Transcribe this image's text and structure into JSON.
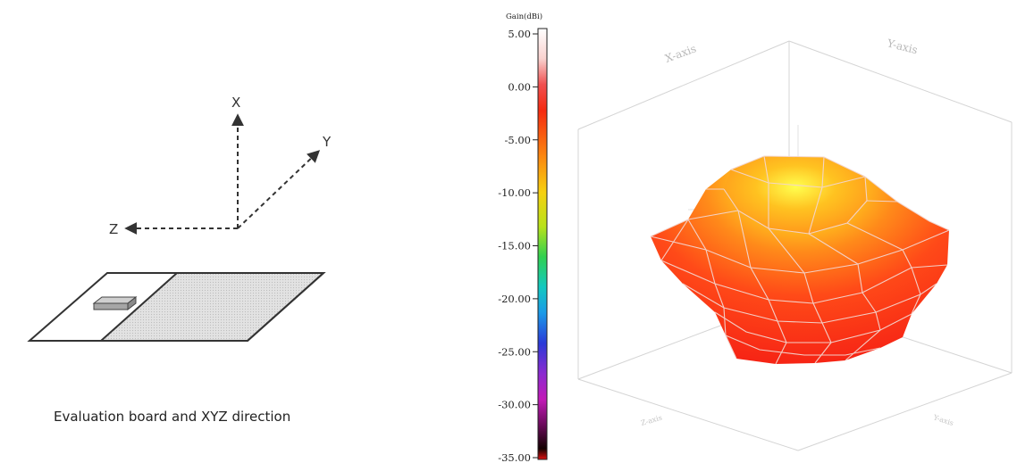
{
  "left_panel": {
    "axes": {
      "x_label": "X",
      "y_label": "Y",
      "z_label": "Z"
    },
    "caption": "Evaluation board and XYZ direction"
  },
  "colorbar": {
    "title": "Gain(dBi)",
    "ticks": [
      "5.00",
      "0.00",
      "-5.00",
      "-10.00",
      "-15.00",
      "-20.00",
      "-25.00",
      "-30.00",
      "-35.00"
    ],
    "range": [
      -35,
      5
    ]
  },
  "plot3d": {
    "axis_labels": {
      "x": "X-axis",
      "y": "Y-axis",
      "z_front_left": "Z-axis",
      "z_front_right": "Y-axis"
    }
  }
}
